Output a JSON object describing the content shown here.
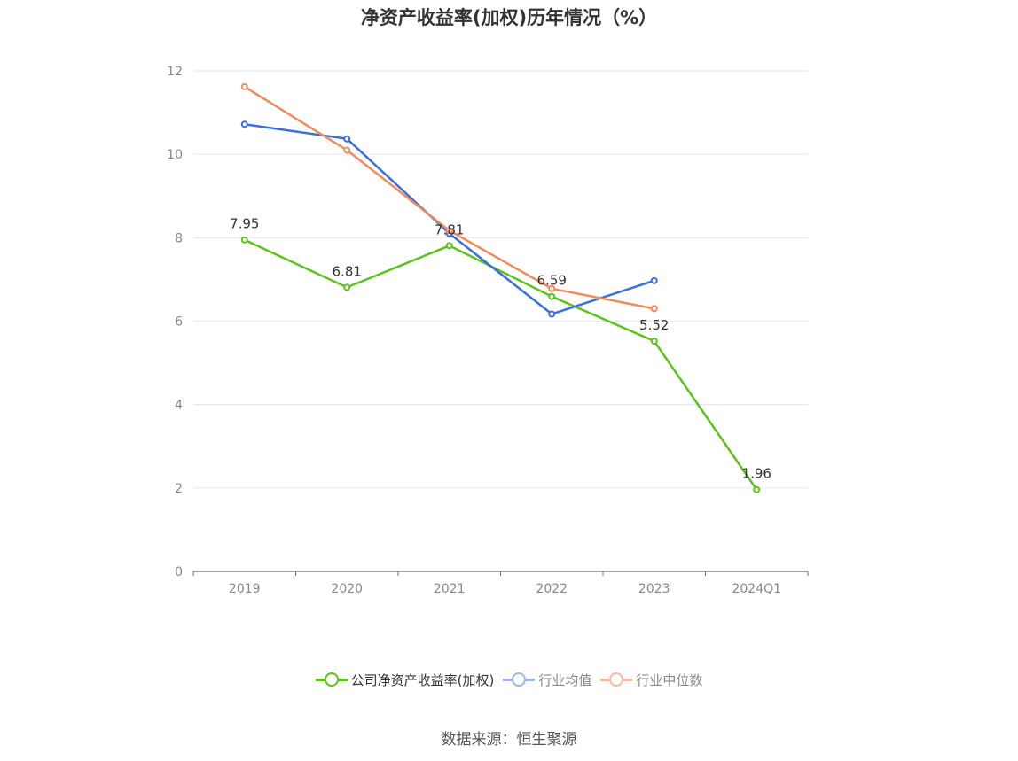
{
  "chart_data": {
    "type": "line",
    "title": "净资产收益率(加权)历年情况（%）",
    "categories": [
      "2019",
      "2020",
      "2021",
      "2022",
      "2023",
      "2024Q1"
    ],
    "ylim": [
      0,
      12
    ],
    "yticks": [
      0,
      2,
      4,
      6,
      8,
      10,
      12
    ],
    "grid": true,
    "legend_position": "bottom",
    "series": [
      {
        "name": "公司净资产收益率(加权)",
        "color": "#5cc31a",
        "values": [
          7.95,
          6.81,
          7.81,
          6.59,
          5.52,
          1.96
        ],
        "labels": [
          "7.95",
          "6.81",
          "7.81",
          "6.59",
          "5.52",
          "1.96"
        ]
      },
      {
        "name": "行业均值",
        "color": "#3a6fdc",
        "values": [
          10.72,
          10.37,
          8.1,
          6.17,
          6.97,
          null
        ]
      },
      {
        "name": "行业中位数",
        "color": "#f28a5a",
        "values": [
          11.62,
          10.1,
          8.17,
          6.78,
          6.3,
          null
        ]
      }
    ]
  },
  "legend": {
    "items": [
      {
        "label": "公司净资产收益率(加权)",
        "color": "#5cc31a",
        "marker_color": "#5cc31a"
      },
      {
        "label": "行业均值",
        "color": "#9db7ee",
        "marker_color": "#9db7ee"
      },
      {
        "label": "行业中位数",
        "color": "#f6b9a0",
        "marker_color": "#f6b9a0"
      }
    ]
  },
  "source": "数据来源：恒生聚源"
}
